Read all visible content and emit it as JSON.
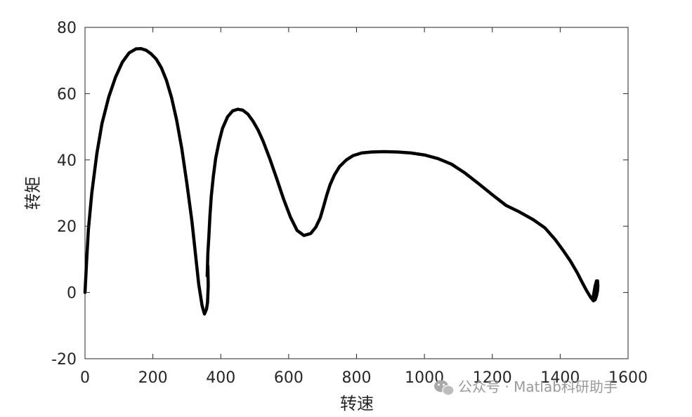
{
  "chart_data": {
    "type": "line",
    "title": "",
    "xlabel": "转速",
    "ylabel": "转矩",
    "xlim": [
      0,
      1600
    ],
    "ylim": [
      -20,
      80
    ],
    "xticks": [
      0,
      200,
      400,
      600,
      800,
      1000,
      1200,
      1400,
      1600
    ],
    "yticks": [
      -20,
      0,
      20,
      40,
      60,
      80
    ],
    "xtick_labels": [
      "0",
      "200",
      "400",
      "600",
      "800",
      "1000",
      "1200",
      "1400",
      "1600"
    ],
    "ytick_labels": [
      "-20",
      "0",
      "20",
      "40",
      "60",
      "80"
    ],
    "grid": false,
    "box": true,
    "line_color": "#000000",
    "series": [
      {
        "x": [
          0,
          5,
          10,
          20,
          35,
          50,
          70,
          90,
          110,
          130,
          150,
          165,
          180,
          195,
          210,
          225,
          240,
          255,
          270,
          285,
          300,
          315,
          325,
          335,
          345,
          352,
          358,
          361,
          363,
          362,
          360,
          362,
          365,
          368,
          372,
          378,
          385,
          395,
          405,
          420,
          435,
          450,
          465,
          480,
          495,
          510,
          525,
          545,
          565,
          585,
          605,
          625,
          645,
          665,
          680,
          693,
          703,
          712,
          722,
          735,
          750,
          770,
          790,
          815,
          845,
          880,
          920,
          960,
          1000,
          1040,
          1080,
          1120,
          1160,
          1200,
          1240,
          1280,
          1320,
          1355,
          1385,
          1410,
          1430,
          1450,
          1465,
          1478,
          1490,
          1498,
          1503,
          1507,
          1510,
          1511,
          1510,
          1507,
          1503,
          1500,
          1497,
          1497,
          1500,
          1503
        ],
        "y": [
          0,
          10,
          19,
          30,
          42,
          51,
          59,
          65,
          69.5,
          72.3,
          73.5,
          73.6,
          73.1,
          72,
          70.4,
          67.8,
          64,
          58.8,
          52,
          43.5,
          33,
          21.5,
          12,
          2.5,
          -4,
          -6.5,
          -5,
          -3,
          2,
          8,
          5,
          12,
          17,
          23,
          29,
          35,
          40.5,
          45.5,
          49.5,
          53,
          54.8,
          55.3,
          55,
          53.8,
          51.7,
          49,
          45.6,
          40.2,
          34.3,
          28.2,
          22.8,
          18.7,
          17.2,
          17.8,
          19.7,
          22.5,
          26,
          29.3,
          32.5,
          35.5,
          38,
          40,
          41.3,
          42.1,
          42.4,
          42.5,
          42.4,
          42.1,
          41.5,
          40.4,
          38.7,
          36,
          32.8,
          29.5,
          26.3,
          24.3,
          22,
          19.5,
          16,
          12.5,
          9.5,
          6,
          3,
          0.5,
          -1.5,
          -2.5,
          -2.2,
          -1,
          0.5,
          2,
          3.5,
          3.5,
          2,
          0.2,
          -1.5,
          -2.2,
          -1.5,
          -0.5
        ]
      }
    ]
  },
  "watermark": {
    "text": "公众号 · Matlab科研助手",
    "icon": "wechat-icon",
    "color": "#9a9a9a"
  }
}
